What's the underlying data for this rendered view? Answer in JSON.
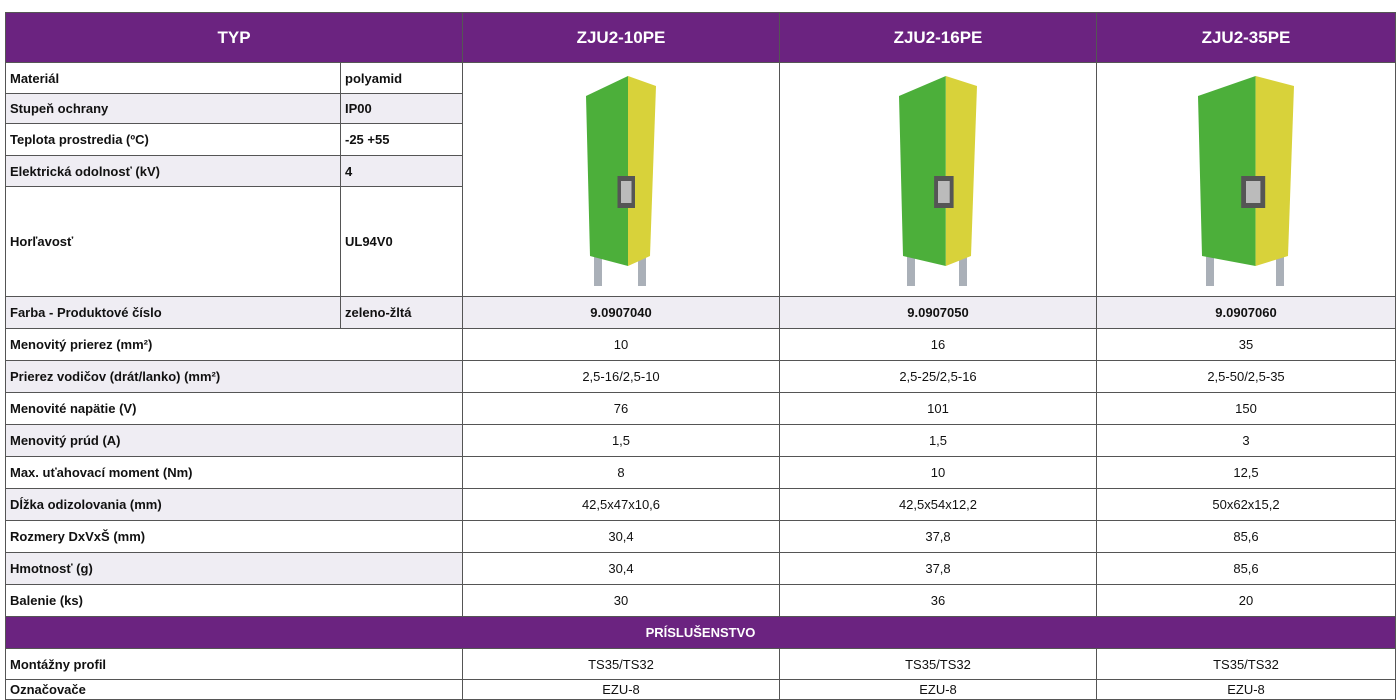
{
  "header": {
    "typ": "TYP",
    "products": [
      "ZJU2-10PE",
      "ZJU2-16PE",
      "ZJU2-35PE"
    ]
  },
  "properties": [
    [
      "Materiál",
      "polyamid"
    ],
    [
      "Stupeň ochrany",
      "IP00"
    ],
    [
      "Teplota prostredia (ºC)",
      "-25 +55"
    ],
    [
      "Elektrická odolnosť (kV)",
      "4"
    ],
    [
      "Horľavosť",
      "UL94V0"
    ]
  ],
  "product_numbers": {
    "label": "Farba - Produktové číslo",
    "value": "zeleno-žltá",
    "numbers": [
      "9.0907040",
      "9.0907050",
      "9.0907060"
    ]
  },
  "specs": [
    {
      "label": "Menovitý prierez (mm²)",
      "values": [
        "10",
        "16",
        "35"
      ]
    },
    {
      "label": "Prierez vodičov (drát/lanko) (mm²)",
      "values": [
        "2,5-16/2,5-10",
        "2,5-25/2,5-16",
        "2,5-50/2,5-35"
      ]
    },
    {
      "label": "Menovité napätie (V)",
      "values": [
        "76",
        "101",
        "150"
      ]
    },
    {
      "label": "Menovitý prúd (A)",
      "values": [
        "1,5",
        "1,5",
        "3"
      ]
    },
    {
      "label": "Max. uťahovací moment (Nm)",
      "values": [
        "8",
        "10",
        "12,5"
      ]
    },
    {
      "label": "Dĺžka odizolovania (mm)",
      "values": [
        "42,5x47x10,6",
        "42,5x54x12,2",
        "50x62x15,2"
      ]
    },
    {
      "label": "Rozmery DxVxŠ (mm)",
      "values": [
        "30,4",
        "37,8",
        "85,6"
      ]
    },
    {
      "label": "Hmotnosť (g)",
      "values": [
        "30,4",
        "37,8",
        "85,6"
      ]
    },
    {
      "label": "Balenie (ks)",
      "values": [
        "30",
        "36",
        "20"
      ]
    }
  ],
  "section": "PRÍSLUŠENSTVO",
  "accessories": [
    {
      "label": "Montážny profil",
      "values": [
        "TS35/TS32",
        "TS35/TS32",
        "TS35/TS32"
      ]
    },
    {
      "label": "Označovače",
      "values": [
        "EZU-8",
        "EZU-8",
        "EZU-8"
      ]
    }
  ]
}
